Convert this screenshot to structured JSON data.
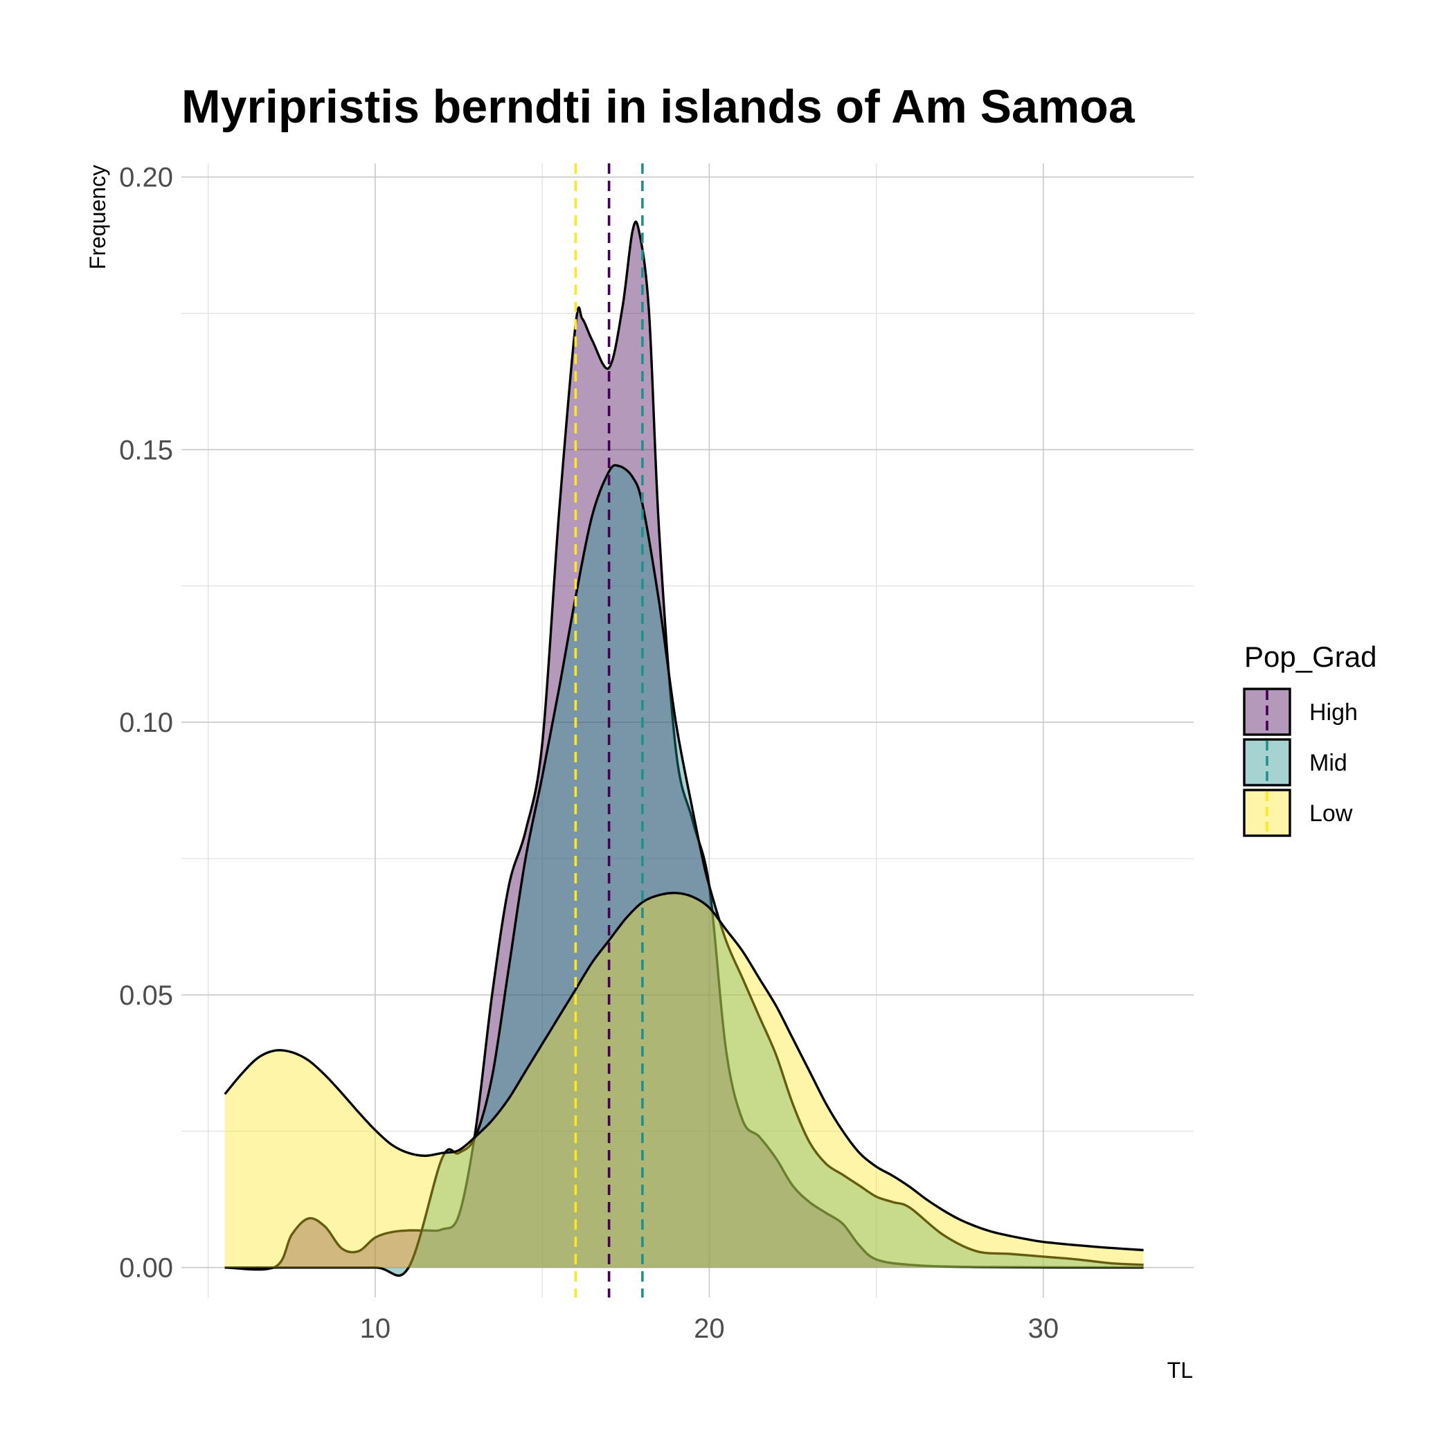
{
  "chart_data": {
    "type": "area",
    "title": "Myripristis berndti in islands of Am Samoa",
    "xlabel": "TL",
    "ylabel": "Frequency",
    "xlim": [
      4.2,
      34.5
    ],
    "ylim": [
      -0.0055,
      0.2025
    ],
    "x_ticks": [
      10,
      20,
      30
    ],
    "x_tick_labels": [
      "10",
      "20",
      "30"
    ],
    "y_ticks": [
      0,
      0.05,
      0.1,
      0.15,
      0.2
    ],
    "y_tick_labels": [
      "0.00",
      "0.05",
      "0.10",
      "0.15",
      "0.20"
    ],
    "grid": true,
    "legend": {
      "title": "Pop_Grad",
      "position": "right",
      "entries": [
        "High",
        "Mid",
        "Low"
      ]
    },
    "series": [
      {
        "name": "High",
        "fill": "#440154",
        "mean_line_color": "#440154",
        "mean": 17.0,
        "points": [
          [
            5.5,
            0.0
          ],
          [
            7.0,
            0.0001
          ],
          [
            7.5,
            0.006
          ],
          [
            8.0,
            0.009
          ],
          [
            8.5,
            0.0075
          ],
          [
            9.0,
            0.0035
          ],
          [
            9.5,
            0.003
          ],
          [
            10.0,
            0.0055
          ],
          [
            10.5,
            0.0065
          ],
          [
            11.0,
            0.0068
          ],
          [
            11.5,
            0.0068
          ],
          [
            12.0,
            0.007
          ],
          [
            12.5,
            0.0095
          ],
          [
            13.0,
            0.025
          ],
          [
            13.5,
            0.05
          ],
          [
            14.0,
            0.07
          ],
          [
            14.5,
            0.08
          ],
          [
            15.0,
            0.096
          ],
          [
            15.5,
            0.138
          ],
          [
            16.0,
            0.173
          ],
          [
            16.2,
            0.174
          ],
          [
            16.5,
            0.17
          ],
          [
            17.0,
            0.165
          ],
          [
            17.4,
            0.176
          ],
          [
            17.7,
            0.19
          ],
          [
            17.9,
            0.19
          ],
          [
            18.2,
            0.175
          ],
          [
            18.5,
            0.135
          ],
          [
            19.0,
            0.095
          ],
          [
            19.5,
            0.082
          ],
          [
            20.0,
            0.07
          ],
          [
            20.5,
            0.04
          ],
          [
            21.0,
            0.027
          ],
          [
            21.5,
            0.024
          ],
          [
            22.0,
            0.02
          ],
          [
            22.5,
            0.015
          ],
          [
            23.0,
            0.012
          ],
          [
            23.5,
            0.01
          ],
          [
            24.0,
            0.008
          ],
          [
            24.5,
            0.004
          ],
          [
            25.0,
            0.0015
          ],
          [
            26.0,
            0.0005
          ],
          [
            28.0,
            0.0001
          ],
          [
            33.0,
            0.0
          ]
        ]
      },
      {
        "name": "Mid",
        "fill": "#21908c",
        "mean_line_color": "#21908c",
        "mean": 18.0,
        "points": [
          [
            5.5,
            0.0
          ],
          [
            8.0,
            0.0
          ],
          [
            10.0,
            0.0
          ],
          [
            11.0,
            0.0
          ],
          [
            12.0,
            0.02
          ],
          [
            12.5,
            0.021
          ],
          [
            13.0,
            0.024
          ],
          [
            13.5,
            0.035
          ],
          [
            14.0,
            0.055
          ],
          [
            14.5,
            0.075
          ],
          [
            15.0,
            0.09
          ],
          [
            15.5,
            0.106
          ],
          [
            16.0,
            0.123
          ],
          [
            16.5,
            0.138
          ],
          [
            17.0,
            0.146
          ],
          [
            17.3,
            0.147
          ],
          [
            17.7,
            0.145
          ],
          [
            18.0,
            0.14
          ],
          [
            18.5,
            0.122
          ],
          [
            19.0,
            0.1
          ],
          [
            19.5,
            0.084
          ],
          [
            19.8,
            0.075
          ],
          [
            20.0,
            0.07
          ],
          [
            20.5,
            0.06
          ],
          [
            21.0,
            0.053
          ],
          [
            21.5,
            0.046
          ],
          [
            22.0,
            0.039
          ],
          [
            22.5,
            0.03
          ],
          [
            23.0,
            0.023
          ],
          [
            23.5,
            0.019
          ],
          [
            24.0,
            0.017
          ],
          [
            24.5,
            0.015
          ],
          [
            25.0,
            0.013
          ],
          [
            25.5,
            0.012
          ],
          [
            26.0,
            0.011
          ],
          [
            27.0,
            0.006
          ],
          [
            28.0,
            0.003
          ],
          [
            29.0,
            0.0025
          ],
          [
            30.0,
            0.002
          ],
          [
            31.0,
            0.0015
          ],
          [
            32.0,
            0.0008
          ],
          [
            33.0,
            0.0005
          ]
        ]
      },
      {
        "name": "Low",
        "fill": "#fde725",
        "mean_line_color": "#fde725",
        "mean": 16.0,
        "points": [
          [
            5.5,
            0.0318
          ],
          [
            6.0,
            0.0355
          ],
          [
            6.5,
            0.0385
          ],
          [
            7.0,
            0.0398
          ],
          [
            7.5,
            0.0395
          ],
          [
            8.0,
            0.038
          ],
          [
            8.5,
            0.0353
          ],
          [
            9.0,
            0.032
          ],
          [
            9.5,
            0.0285
          ],
          [
            10.0,
            0.0252
          ],
          [
            10.5,
            0.0225
          ],
          [
            11.0,
            0.021
          ],
          [
            11.5,
            0.0205
          ],
          [
            12.0,
            0.021
          ],
          [
            12.5,
            0.0215
          ],
          [
            13.0,
            0.024
          ],
          [
            13.5,
            0.027
          ],
          [
            14.0,
            0.031
          ],
          [
            14.5,
            0.036
          ],
          [
            15.0,
            0.041
          ],
          [
            15.5,
            0.046
          ],
          [
            16.0,
            0.051
          ],
          [
            16.5,
            0.056
          ],
          [
            17.0,
            0.06
          ],
          [
            17.5,
            0.064
          ],
          [
            18.0,
            0.067
          ],
          [
            18.5,
            0.0683
          ],
          [
            19.0,
            0.0687
          ],
          [
            19.5,
            0.068
          ],
          [
            20.0,
            0.066
          ],
          [
            20.5,
            0.062
          ],
          [
            21.0,
            0.058
          ],
          [
            21.5,
            0.053
          ],
          [
            22.0,
            0.048
          ],
          [
            22.5,
            0.042
          ],
          [
            23.0,
            0.036
          ],
          [
            23.5,
            0.03
          ],
          [
            24.0,
            0.025
          ],
          [
            24.5,
            0.021
          ],
          [
            25.0,
            0.0185
          ],
          [
            25.5,
            0.0168
          ],
          [
            26.0,
            0.0148
          ],
          [
            26.5,
            0.0125
          ],
          [
            27.0,
            0.0105
          ],
          [
            27.5,
            0.0088
          ],
          [
            28.0,
            0.0075
          ],
          [
            28.5,
            0.0065
          ],
          [
            29.0,
            0.0058
          ],
          [
            29.5,
            0.0052
          ],
          [
            30.0,
            0.0047
          ],
          [
            31.0,
            0.0041
          ],
          [
            32.0,
            0.0036
          ],
          [
            33.0,
            0.0032
          ]
        ]
      }
    ]
  }
}
